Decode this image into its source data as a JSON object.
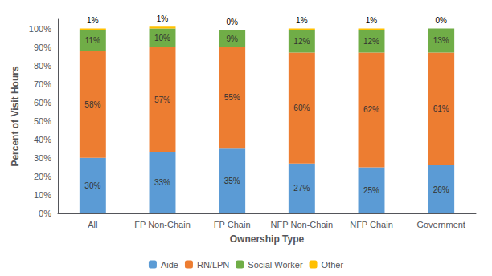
{
  "chart_data": {
    "type": "bar",
    "stacked": true,
    "categories": [
      "All",
      "FP Non-Chain",
      "FP Chain",
      "NFP Non-Chain",
      "NFP Chain",
      "Government"
    ],
    "series": [
      {
        "name": "Aide",
        "color": "#5B9BD5",
        "values": [
          30,
          33,
          35,
          27,
          25,
          26
        ],
        "value_labels": [
          "30%",
          "33%",
          "35%",
          "27%",
          "25%",
          "26%"
        ]
      },
      {
        "name": "RN/LPN",
        "color": "#ED7D31",
        "values": [
          58,
          57,
          55,
          60,
          62,
          61
        ],
        "value_labels": [
          "58%",
          "57%",
          "55%",
          "60%",
          "62%",
          "61%"
        ]
      },
      {
        "name": "Social Worker",
        "color": "#70AD47",
        "values": [
          11,
          10,
          9,
          12,
          12,
          13
        ],
        "value_labels": [
          "11%",
          "10%",
          "9%",
          "12%",
          "12%",
          "13%"
        ]
      },
      {
        "name": "Other",
        "color": "#FFC000",
        "values": [
          1,
          1,
          0,
          1,
          1,
          0
        ],
        "value_labels": [
          "1%",
          "1%",
          "0%",
          "1%",
          "1%",
          "0%"
        ]
      }
    ],
    "xlabel": "Ownership Type",
    "ylabel": "Percent of Visit Hours",
    "ylim": [
      0,
      105
    ],
    "yticks": [
      {
        "value": 0,
        "label": "0%"
      },
      {
        "value": 10,
        "label": "10%"
      },
      {
        "value": 20,
        "label": "20%"
      },
      {
        "value": 30,
        "label": "30%"
      },
      {
        "value": 40,
        "label": "40%"
      },
      {
        "value": 50,
        "label": "50%"
      },
      {
        "value": 60,
        "label": "60%"
      },
      {
        "value": 70,
        "label": "70%"
      },
      {
        "value": 80,
        "label": "80%"
      },
      {
        "value": 90,
        "label": "90%"
      },
      {
        "value": 100,
        "label": "100%"
      }
    ],
    "data_labels": true,
    "legend": "bottom",
    "grid": false
  }
}
